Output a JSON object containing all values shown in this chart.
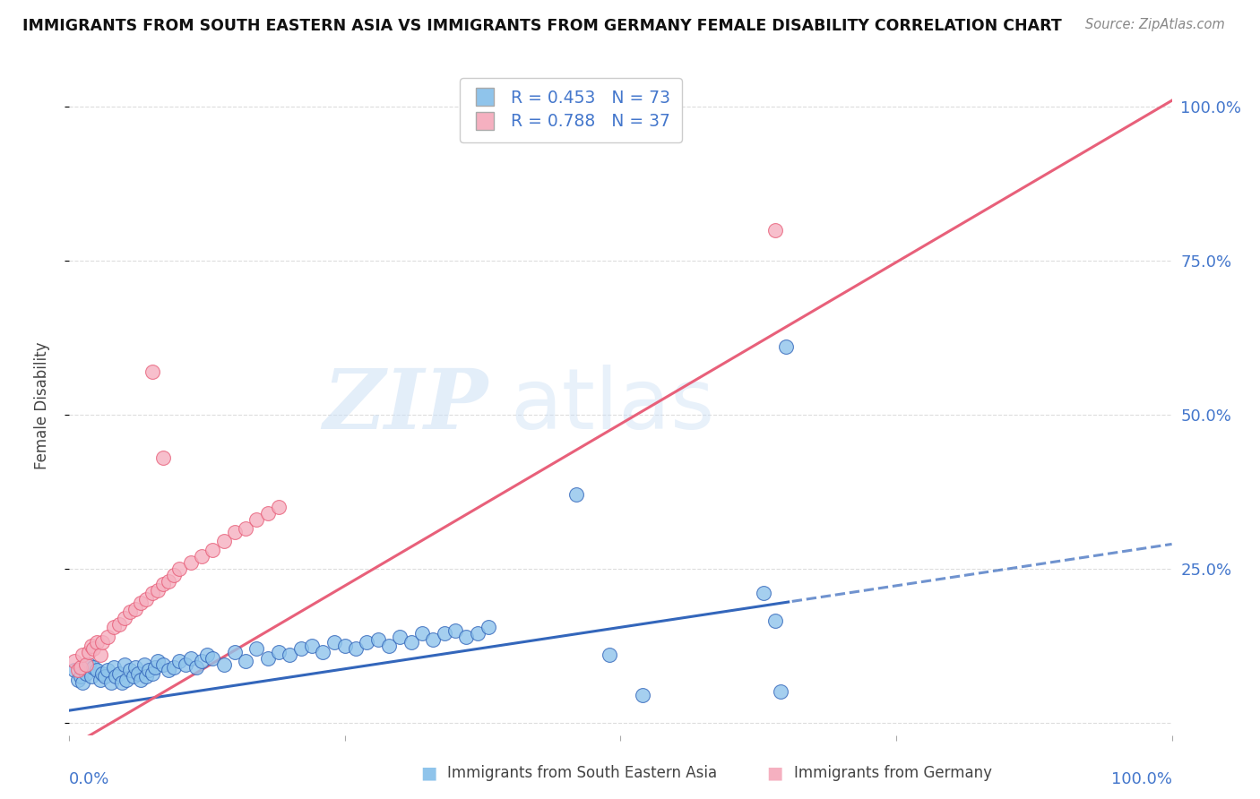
{
  "title": "IMMIGRANTS FROM SOUTH EASTERN ASIA VS IMMIGRANTS FROM GERMANY FEMALE DISABILITY CORRELATION CHART",
  "source": "Source: ZipAtlas.com",
  "ylabel": "Female Disability",
  "color1": "#8fc4eb",
  "color2": "#f5b0c0",
  "line_color1": "#3366bb",
  "line_color2": "#e8607a",
  "r1": 0.453,
  "n1": 73,
  "r2": 0.788,
  "n2": 37,
  "legend_label1": "Immigrants from South Eastern Asia",
  "legend_label2": "Immigrants from Germany",
  "watermark_color": "#cce0f5",
  "background_color": "#ffffff",
  "grid_color": "#dddddd",
  "title_color": "#111111",
  "source_color": "#888888",
  "axis_label_color": "#444444",
  "tick_color": "#4477cc",
  "blue_line_intercept": 0.02,
  "blue_line_slope": 0.27,
  "pink_line_intercept": -0.04,
  "pink_line_slope": 1.05,
  "blue_scatter_x": [
    0.005,
    0.008,
    0.01,
    0.012,
    0.015,
    0.018,
    0.02,
    0.022,
    0.025,
    0.028,
    0.03,
    0.032,
    0.035,
    0.038,
    0.04,
    0.042,
    0.045,
    0.048,
    0.05,
    0.052,
    0.055,
    0.058,
    0.06,
    0.062,
    0.065,
    0.068,
    0.07,
    0.072,
    0.075,
    0.078,
    0.08,
    0.085,
    0.09,
    0.095,
    0.1,
    0.105,
    0.11,
    0.115,
    0.12,
    0.125,
    0.13,
    0.14,
    0.15,
    0.16,
    0.17,
    0.18,
    0.19,
    0.2,
    0.21,
    0.22,
    0.23,
    0.24,
    0.25,
    0.26,
    0.27,
    0.28,
    0.29,
    0.3,
    0.31,
    0.32,
    0.33,
    0.34,
    0.35,
    0.36,
    0.37,
    0.38,
    0.46,
    0.49,
    0.52,
    0.63,
    0.64,
    0.645,
    0.65
  ],
  "blue_scatter_y": [
    0.085,
    0.07,
    0.075,
    0.065,
    0.08,
    0.095,
    0.075,
    0.09,
    0.085,
    0.07,
    0.08,
    0.075,
    0.085,
    0.065,
    0.09,
    0.075,
    0.08,
    0.065,
    0.095,
    0.07,
    0.085,
    0.075,
    0.09,
    0.08,
    0.07,
    0.095,
    0.075,
    0.085,
    0.08,
    0.09,
    0.1,
    0.095,
    0.085,
    0.09,
    0.1,
    0.095,
    0.105,
    0.09,
    0.1,
    0.11,
    0.105,
    0.095,
    0.115,
    0.1,
    0.12,
    0.105,
    0.115,
    0.11,
    0.12,
    0.125,
    0.115,
    0.13,
    0.125,
    0.12,
    0.13,
    0.135,
    0.125,
    0.14,
    0.13,
    0.145,
    0.135,
    0.145,
    0.15,
    0.14,
    0.145,
    0.155,
    0.37,
    0.11,
    0.045,
    0.21,
    0.165,
    0.05,
    0.61
  ],
  "pink_scatter_x": [
    0.005,
    0.008,
    0.01,
    0.012,
    0.015,
    0.018,
    0.02,
    0.022,
    0.025,
    0.028,
    0.03,
    0.035,
    0.04,
    0.045,
    0.05,
    0.055,
    0.06,
    0.065,
    0.07,
    0.075,
    0.08,
    0.085,
    0.09,
    0.095,
    0.1,
    0.11,
    0.12,
    0.13,
    0.14,
    0.15,
    0.16,
    0.17,
    0.18,
    0.19,
    0.075,
    0.64,
    0.085
  ],
  "pink_scatter_y": [
    0.1,
    0.085,
    0.09,
    0.11,
    0.095,
    0.115,
    0.125,
    0.12,
    0.13,
    0.11,
    0.13,
    0.14,
    0.155,
    0.16,
    0.17,
    0.18,
    0.185,
    0.195,
    0.2,
    0.21,
    0.215,
    0.225,
    0.23,
    0.24,
    0.25,
    0.26,
    0.27,
    0.28,
    0.295,
    0.31,
    0.315,
    0.33,
    0.34,
    0.35,
    0.57,
    0.8,
    0.43
  ]
}
